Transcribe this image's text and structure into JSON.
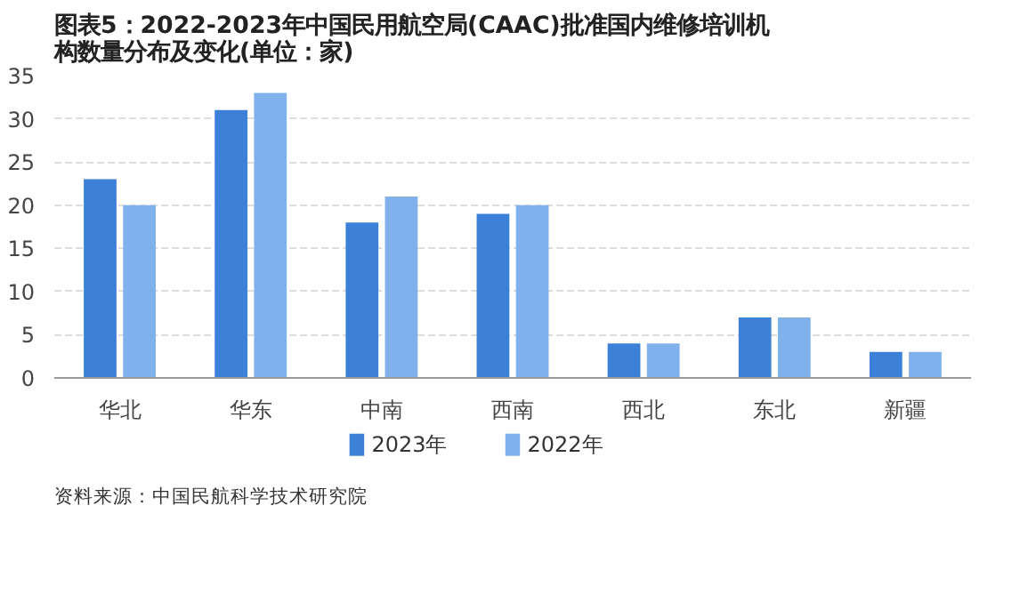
{
  "chart_data": {
    "type": "bar",
    "title": "图表5：2022-2023年中国民用航空局(CAAC)批准国内维修培训机构数量分布及变化(单位：家)",
    "categories": [
      "华北",
      "华东",
      "中南",
      "西南",
      "西北",
      "东北",
      "新疆"
    ],
    "series": [
      {
        "name": "2023年",
        "color": "#3d80d8",
        "values": [
          23,
          31,
          18,
          19,
          4,
          7,
          3
        ]
      },
      {
        "name": "2022年",
        "color": "#80b1ec",
        "values": [
          20,
          33,
          21,
          20,
          4,
          7,
          3
        ]
      }
    ],
    "ylim": [
      0,
      35
    ],
    "yticks": [
      0,
      5,
      10,
      15,
      20,
      25,
      30,
      35
    ],
    "grid": "y",
    "legend": "bottom",
    "annotations": [
      "资料来源：中国民航科学技术研究院"
    ]
  }
}
